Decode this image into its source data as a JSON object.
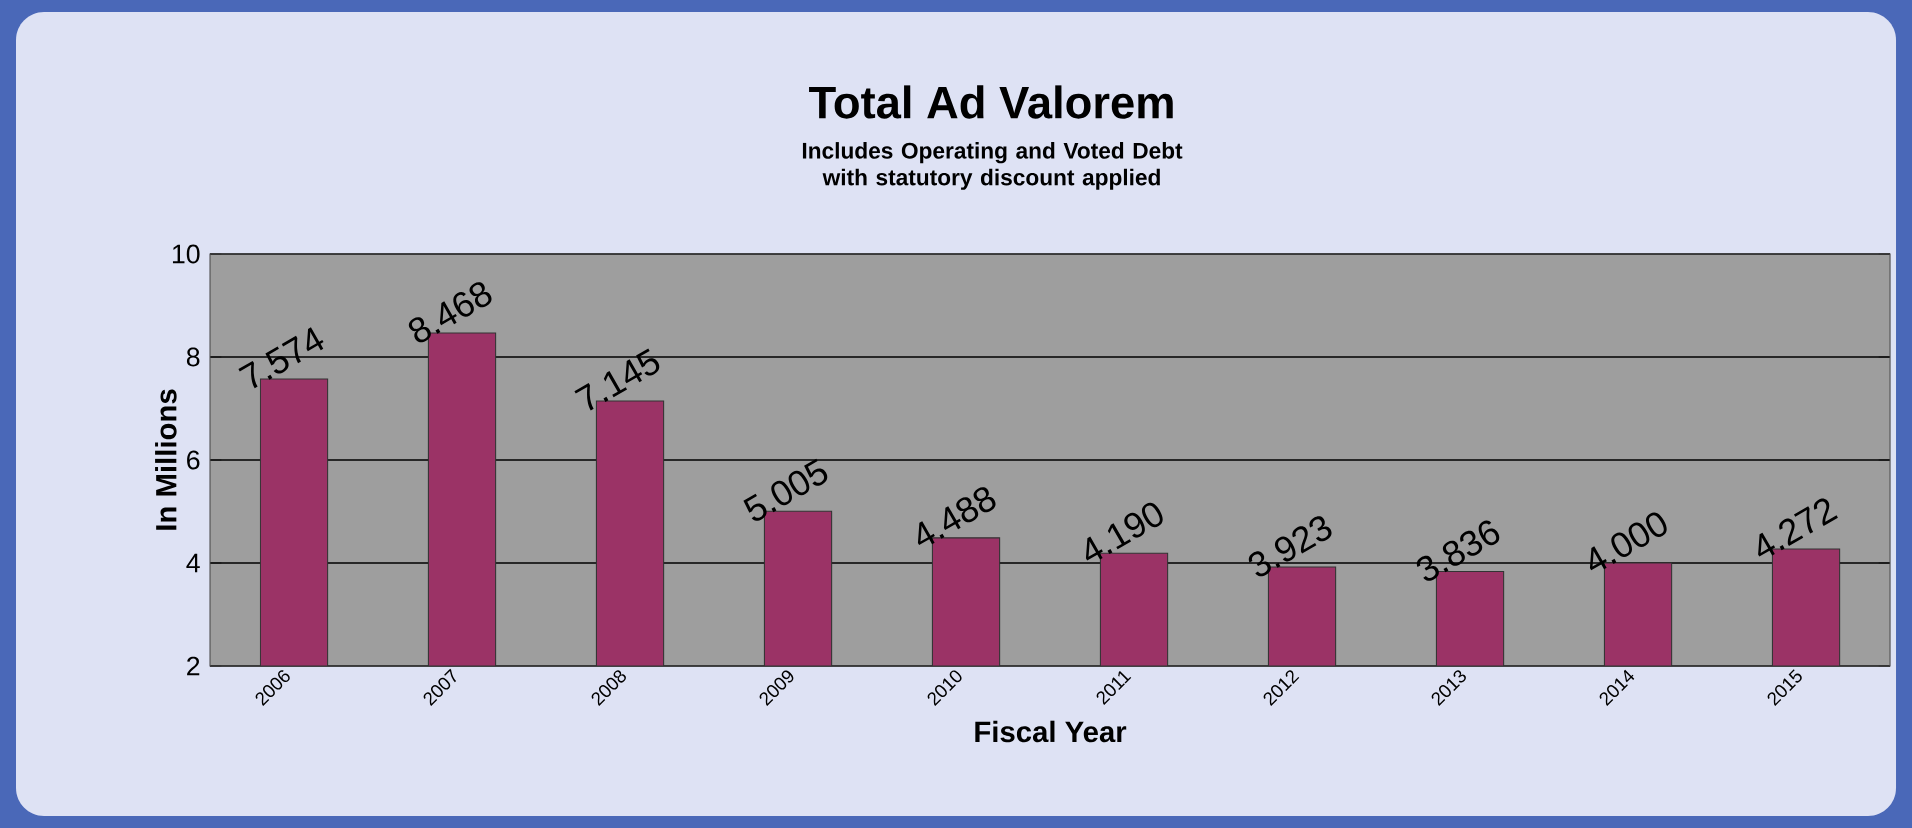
{
  "chart_data": {
    "type": "bar",
    "title": "Total Ad Valorem",
    "subtitle": "Includes Operating **and** Voted Debt with statutory discount applied",
    "xlabel": "Fiscal Year",
    "ylabel": "In Millions",
    "categories": [
      "2006",
      "2007",
      "2008",
      "2009",
      "2010",
      "2011",
      "2012",
      "2013",
      "2014",
      "2015"
    ],
    "values": [
      7.574,
      8.468,
      7.145,
      5.005,
      4.488,
      4.19,
      3.923,
      3.836,
      4.0,
      4.272
    ],
    "value_labels": [
      "7.574",
      "8.468",
      "7.145",
      "5.005",
      "4.488",
      "4.190",
      "3.923",
      "3.836",
      "4.000",
      "4.272"
    ],
    "color": "#9b3366",
    "ylim": [
      2,
      10
    ],
    "yticks": [
      2,
      4,
      6,
      8,
      10
    ],
    "grid": "y"
  }
}
